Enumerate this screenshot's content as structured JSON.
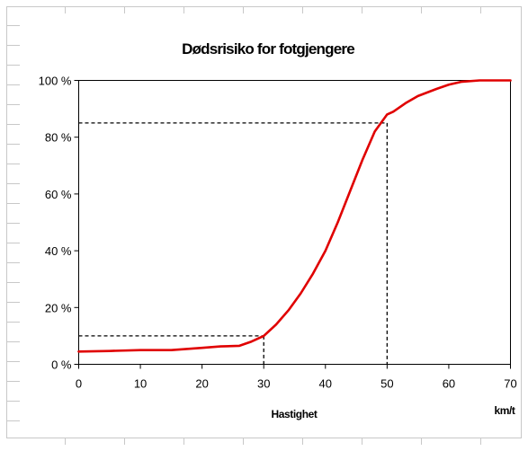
{
  "chart_data": {
    "type": "line",
    "title": "Dødsrisiko for fotgjengere",
    "xlabel": "Hastighet",
    "xunit": "km/t",
    "ylabel": "",
    "xlim": [
      0,
      70
    ],
    "ylim": [
      0,
      100
    ],
    "x_ticks": [
      "0",
      "10",
      "20",
      "30",
      "40",
      "50",
      "60",
      "70"
    ],
    "y_ticks": [
      "0 %",
      "20 %",
      "40 %",
      "60 %",
      "80 %",
      "100 %"
    ],
    "grid": false,
    "legend": "none",
    "series": [
      {
        "color": "#e00000",
        "x": [
          0,
          5,
          10,
          15,
          20,
          23,
          26,
          28,
          30,
          32,
          34,
          36,
          38,
          40,
          42,
          44,
          46,
          48,
          50,
          51,
          53,
          55,
          58,
          60,
          62,
          65,
          70
        ],
        "y": [
          4.5,
          4.7,
          5,
          5,
          5.8,
          6.3,
          6.5,
          8,
          10,
          14,
          19,
          25,
          32,
          40,
          50,
          61,
          72,
          82,
          88,
          89,
          92,
          94.5,
          97,
          98.5,
          99.5,
          100,
          100
        ]
      }
    ],
    "annotations": [
      {
        "type": "dashed-guide",
        "x": 30,
        "y": 10
      },
      {
        "type": "dashed-guide",
        "x": 50,
        "y": 85
      }
    ]
  }
}
